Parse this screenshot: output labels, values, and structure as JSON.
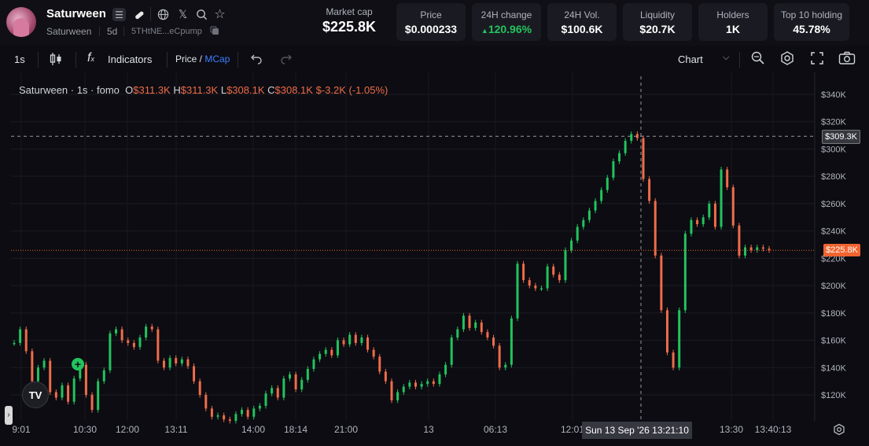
{
  "header": {
    "token_name": "Saturween",
    "token_ticker": "Saturween",
    "age": "5d",
    "address": "5THtNE...eCpump",
    "market_cap_label": "Market cap",
    "market_cap_value": "$225.8K",
    "stats": [
      {
        "label": "Price",
        "value": "$0.000233"
      },
      {
        "label": "24H change",
        "value": "120.96%"
      },
      {
        "label": "24H Vol.",
        "value": "$100.6K"
      },
      {
        "label": "Liquidity",
        "value": "$20.7K"
      },
      {
        "label": "Holders",
        "value": "1K"
      },
      {
        "label": "Top 10 holding",
        "value": "45.78%"
      }
    ],
    "colors": {
      "positive": "#22c35e"
    }
  },
  "toolbar": {
    "interval": "1s",
    "indicators_label": "Indicators",
    "price_label": "Price",
    "mcap_label": "MCap",
    "chart_label": "Chart"
  },
  "legend": {
    "title": "Saturween · 1s · fomo",
    "open_label": "O",
    "open": "$311.3K",
    "high_label": "H",
    "high": "$311.3K",
    "low_label": "L",
    "low": "$308.1K",
    "close_label": "C",
    "close": "$308.1K",
    "change": "$-3.2K (-1.05%)"
  },
  "crosshair": {
    "price_label": "$309.3K",
    "time_label": "Sun 13 Sep '26   13:21:10",
    "price_value": 309.3
  },
  "current_price": {
    "label": "$225.8K",
    "value": 225.8,
    "color": "#f0642f"
  },
  "chart_data": {
    "type": "line",
    "title": "Saturween · 1s · fomo",
    "y_ticks": [
      "$340K",
      "$320K",
      "$300K",
      "$280K",
      "$260K",
      "$240K",
      "$220K",
      "$200K",
      "$180K",
      "$160K",
      "$140K",
      "$120K"
    ],
    "y_tick_values": [
      340,
      320,
      300,
      280,
      260,
      240,
      220,
      200,
      180,
      160,
      140,
      120
    ],
    "ylim": [
      100,
      350
    ],
    "x_ticks": [
      "9:01",
      "10:30",
      "12:00",
      "13:11",
      "14:00",
      "18:14",
      "21:00",
      "13",
      "06:13",
      "12:01",
      "13:30",
      "13:40:13"
    ],
    "colors": {
      "up": "#22c35e",
      "down": "#ef6c4a"
    },
    "series": [
      {
        "values": [
          158,
          168,
          152,
          130,
          140,
          145,
          122,
          118,
          127,
          115,
          132,
          142,
          120,
          109,
          130,
          138,
          165,
          168,
          160,
          158,
          155,
          162,
          170,
          168,
          145,
          140,
          147,
          143,
          146,
          141,
          130,
          120,
          110,
          104,
          105,
          102,
          101,
          106,
          109,
          104,
          110,
          112,
          121,
          125,
          118,
          132,
          135,
          124,
          131,
          139,
          146,
          150,
          153,
          149,
          160,
          157,
          164,
          158,
          162,
          153,
          148,
          137,
          130,
          116,
          122,
          126,
          129,
          126,
          128,
          130,
          128,
          135,
          142,
          162,
          168,
          178,
          169,
          173,
          166,
          162,
          156,
          140,
          142,
          176,
          216,
          204,
          200,
          198,
          198,
          214,
          208,
          204,
          226,
          233,
          243,
          248,
          255,
          262,
          270,
          279,
          291,
          297,
          306,
          311,
          308,
          278,
          262,
          222,
          182,
          151,
          140,
          182,
          238,
          248,
          245,
          250,
          260,
          243,
          285,
          272,
          244,
          222,
          228,
          226,
          228,
          227,
          226
        ]
      }
    ]
  }
}
